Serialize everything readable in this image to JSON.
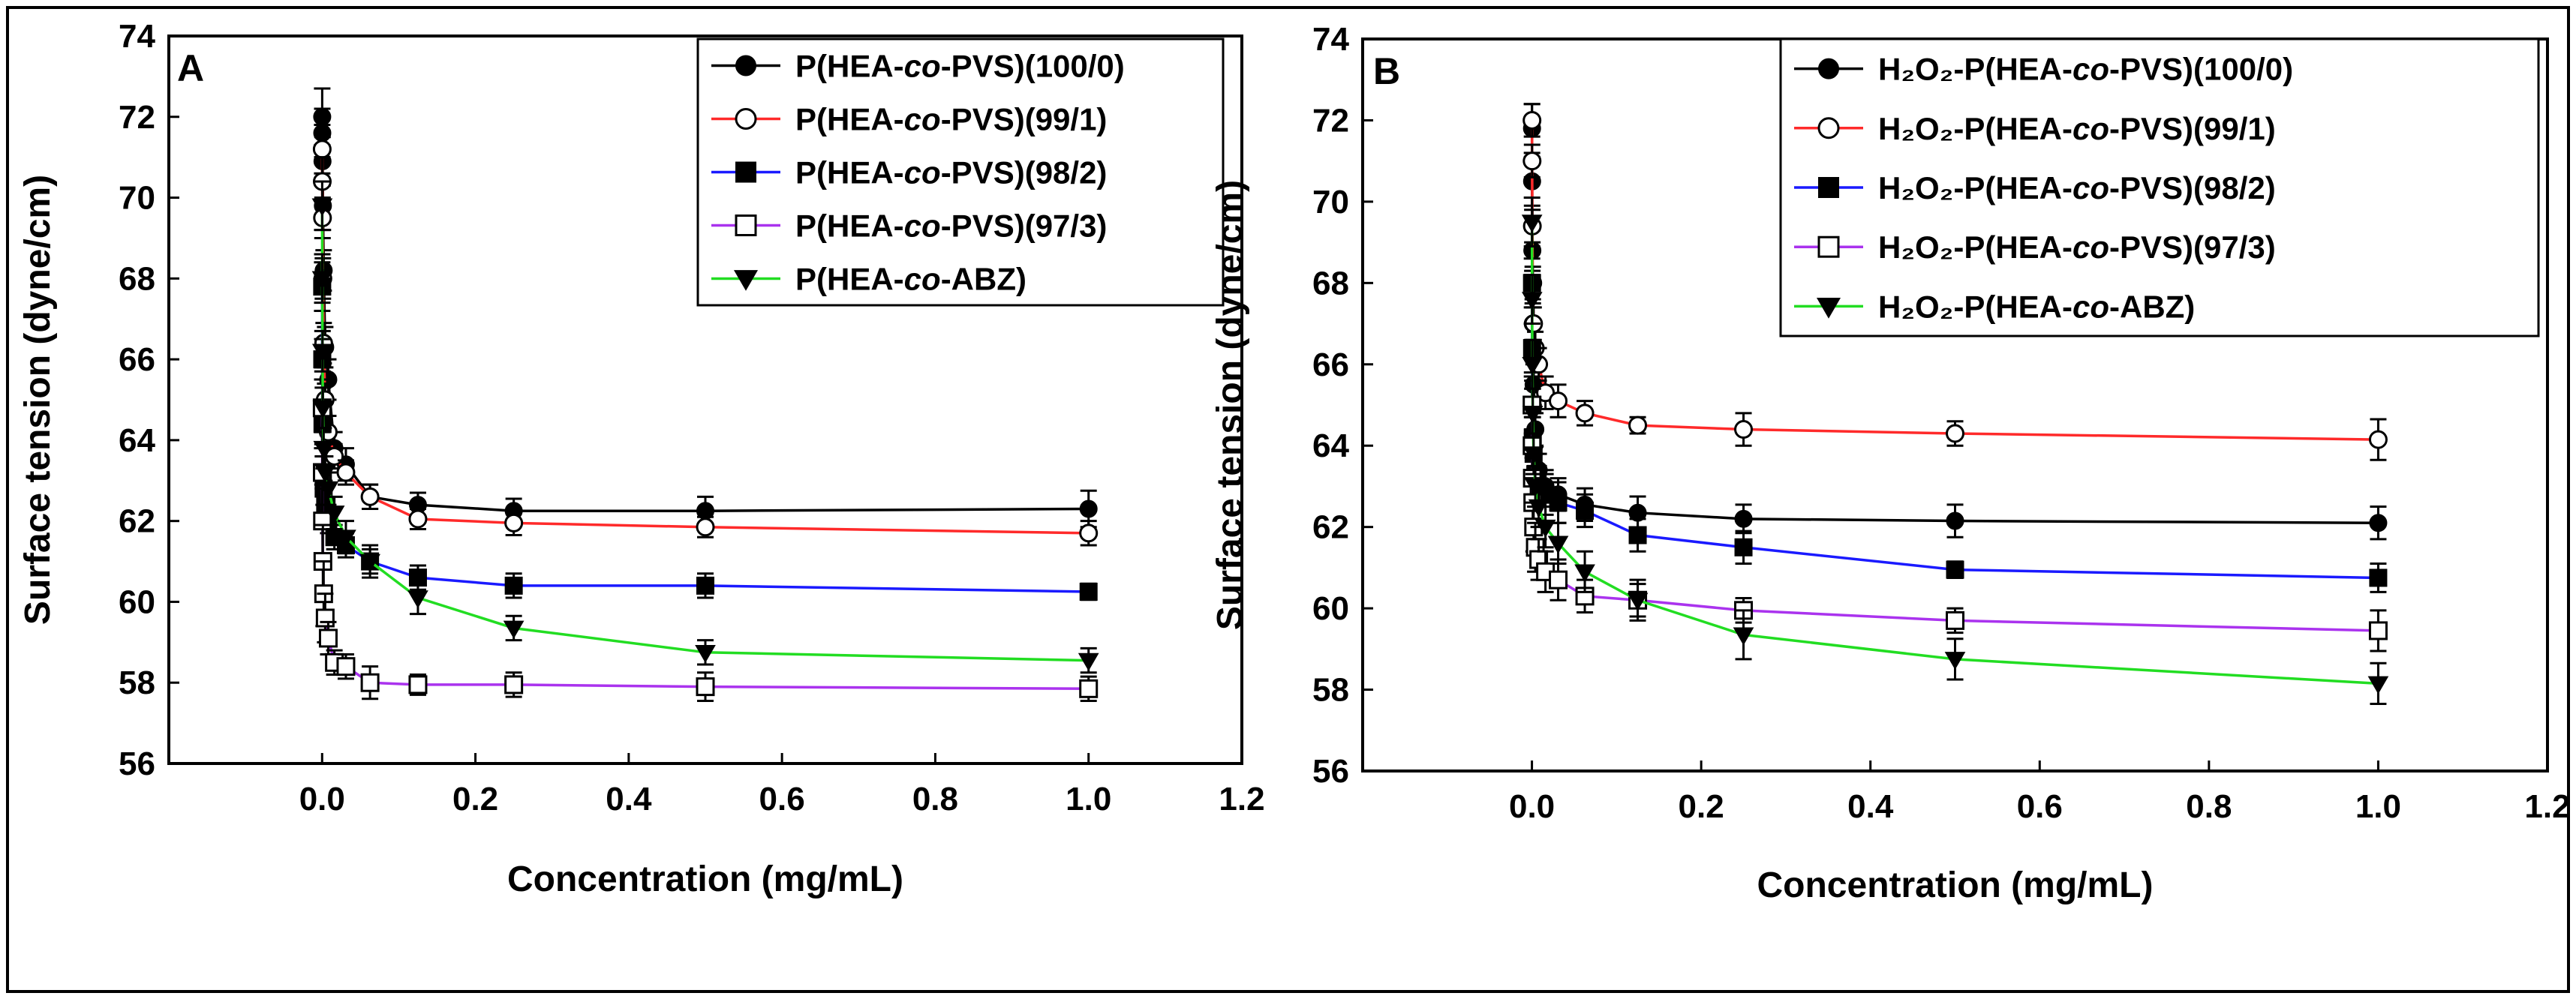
{
  "chart_data": [
    {
      "panel_label": "A",
      "type": "line",
      "xlabel": "Concentration (mg/mL)",
      "ylabel": "Surface tension (dyne/cm)",
      "xlim": [
        -0.2,
        1.2
      ],
      "ylim": [
        56,
        74
      ],
      "xticks": [
        0.0,
        0.2,
        0.4,
        0.6,
        0.8,
        1.0,
        1.2
      ],
      "xtick_labels": [
        "0.0",
        "0.2",
        "0.4",
        "0.6",
        "0.8",
        "1.0",
        "1.2"
      ],
      "yticks": [
        56,
        58,
        60,
        62,
        64,
        66,
        68,
        70,
        72,
        74
      ],
      "ytick_labels": [
        "56",
        "58",
        "60",
        "62",
        "64",
        "66",
        "68",
        "70",
        "72",
        "74"
      ],
      "legend_position": "top-right",
      "series": [
        {
          "legend_prefix": "",
          "legend_main": "P(HEA-",
          "legend_italic": "co",
          "legend_suffix": "-PVS)(100/0)",
          "color": "#000000",
          "marker": "filled-circle",
          "x": [
            0.0001,
            0.0002,
            0.0005,
            0.001,
            0.002,
            0.004,
            0.008,
            0.016,
            0.031,
            0.0625,
            0.125,
            0.25,
            0.5,
            1.0
          ],
          "y": [
            72.0,
            71.6,
            70.9,
            69.8,
            68.2,
            66.3,
            65.5,
            63.8,
            63.4,
            62.6,
            62.4,
            62.25,
            62.25,
            62.3
          ],
          "err": [
            0.7,
            0.6,
            0.6,
            0.6,
            0.5,
            0.5,
            0.5,
            0.4,
            0.4,
            0.3,
            0.3,
            0.3,
            0.35,
            0.45
          ]
        },
        {
          "legend_prefix": "",
          "legend_main": "P(HEA-",
          "legend_italic": "co",
          "legend_suffix": "-PVS)(99/1)",
          "color": "#ff2a2a",
          "marker": "open-circle",
          "x": [
            0.0001,
            0.0002,
            0.0005,
            0.001,
            0.002,
            0.004,
            0.008,
            0.016,
            0.031,
            0.0625,
            0.125,
            0.25,
            0.5,
            1.0
          ],
          "y": [
            71.2,
            70.4,
            69.5,
            68.0,
            66.4,
            65.0,
            64.2,
            63.6,
            63.2,
            62.6,
            62.05,
            61.95,
            61.85,
            61.7
          ],
          "err": [
            0.6,
            0.6,
            0.5,
            0.5,
            0.5,
            0.4,
            0.4,
            0.3,
            0.3,
            0.3,
            0.25,
            0.3,
            0.25,
            0.3
          ]
        },
        {
          "legend_prefix": "",
          "legend_main": "P(HEA-",
          "legend_italic": "co",
          "legend_suffix": "-PVS)(98/2)",
          "color": "#1a1aff",
          "marker": "filled-square",
          "x": [
            0.0001,
            0.0002,
            0.0005,
            0.001,
            0.002,
            0.004,
            0.008,
            0.016,
            0.031,
            0.0625,
            0.125,
            0.25,
            0.5,
            1.0
          ],
          "y": [
            67.8,
            66.0,
            64.4,
            63.2,
            62.8,
            62.4,
            62.0,
            61.6,
            61.4,
            61.0,
            60.6,
            60.4,
            60.4,
            60.25
          ],
          "err": [
            0.6,
            0.5,
            0.5,
            0.4,
            0.4,
            0.4,
            0.3,
            0.3,
            0.3,
            0.3,
            0.3,
            0.3,
            0.3,
            0.2
          ]
        },
        {
          "legend_prefix": "",
          "legend_main": "P(HEA-",
          "legend_italic": "co",
          "legend_suffix": "-PVS)(97/3)",
          "color": "#aa33ee",
          "marker": "open-square",
          "x": [
            0.0001,
            0.0002,
            0.0005,
            0.001,
            0.002,
            0.004,
            0.008,
            0.016,
            0.031,
            0.0625,
            0.125,
            0.25,
            0.5,
            1.0
          ],
          "y": [
            64.8,
            63.2,
            62.0,
            61.0,
            60.2,
            59.6,
            59.1,
            58.5,
            58.4,
            58.0,
            57.95,
            57.95,
            57.9,
            57.85
          ],
          "err": [
            1.0,
            1.0,
            0.9,
            0.9,
            0.8,
            0.6,
            0.4,
            0.3,
            0.3,
            0.4,
            0.25,
            0.3,
            0.35,
            0.3
          ]
        },
        {
          "legend_prefix": "",
          "legend_main": "P(HEA-",
          "legend_italic": "co",
          "legend_suffix": "-ABZ)",
          "color": "#22dd22",
          "marker": "filled-triangle-down",
          "x": [
            0.0001,
            0.0002,
            0.0005,
            0.001,
            0.002,
            0.004,
            0.008,
            0.016,
            0.031,
            0.0625,
            0.125,
            0.25,
            0.5,
            1.0
          ],
          "y": [
            69.8,
            68.0,
            66.2,
            64.8,
            63.8,
            63.2,
            62.8,
            62.2,
            61.6,
            61.0,
            60.1,
            59.35,
            58.75,
            58.55
          ],
          "err": [
            0.6,
            0.6,
            0.5,
            0.5,
            0.5,
            0.4,
            0.4,
            0.4,
            0.4,
            0.4,
            0.4,
            0.3,
            0.3,
            0.3
          ]
        }
      ]
    },
    {
      "panel_label": "B",
      "type": "line",
      "xlabel": "Concentration (mg/mL)",
      "ylabel": "Surface tension (dyne/cm)",
      "xlim": [
        -0.2,
        1.2
      ],
      "ylim": [
        56,
        74
      ],
      "xticks": [
        0.0,
        0.2,
        0.4,
        0.6,
        0.8,
        1.0,
        1.2
      ],
      "xtick_labels": [
        "0.0",
        "0.2",
        "0.4",
        "0.6",
        "0.8",
        "1.0",
        "1.2"
      ],
      "yticks": [
        56,
        58,
        60,
        62,
        64,
        66,
        68,
        70,
        72,
        74
      ],
      "ytick_labels": [
        "56",
        "58",
        "60",
        "62",
        "64",
        "66",
        "68",
        "70",
        "72",
        "74"
      ],
      "legend_position": "top-right",
      "series": [
        {
          "legend_prefix": "H₂O₂-",
          "legend_main": "P(HEA-",
          "legend_italic": "co",
          "legend_suffix": "-PVS)(100/0)",
          "color": "#000000",
          "marker": "filled-circle",
          "x": [
            0.0001,
            0.0002,
            0.0005,
            0.001,
            0.002,
            0.004,
            0.008,
            0.016,
            0.031,
            0.0625,
            0.125,
            0.25,
            0.5,
            1.0
          ],
          "y": [
            71.8,
            70.5,
            68.8,
            67.0,
            65.5,
            64.4,
            63.4,
            63.0,
            62.8,
            62.55,
            62.35,
            62.2,
            62.15,
            62.1
          ],
          "err": [
            0.6,
            0.6,
            0.5,
            0.5,
            0.5,
            0.4,
            0.4,
            0.4,
            0.4,
            0.4,
            0.4,
            0.35,
            0.4,
            0.4
          ]
        },
        {
          "legend_prefix": "H₂O₂-",
          "legend_main": "P(HEA-",
          "legend_italic": "co",
          "legend_suffix": "-PVS)(99/1)",
          "color": "#ff2a2a",
          "marker": "open-circle",
          "x": [
            0.0001,
            0.0002,
            0.0005,
            0.001,
            0.002,
            0.004,
            0.008,
            0.016,
            0.031,
            0.0625,
            0.125,
            0.25,
            0.5,
            1.0
          ],
          "y": [
            72.0,
            71.0,
            69.4,
            68.0,
            67.0,
            66.4,
            66.0,
            65.3,
            65.1,
            64.8,
            64.5,
            64.4,
            64.3,
            64.15
          ],
          "err": [
            0.4,
            0.4,
            0.4,
            0.4,
            0.4,
            0.4,
            0.4,
            0.4,
            0.4,
            0.3,
            0.2,
            0.4,
            0.3,
            0.5
          ]
        },
        {
          "legend_prefix": "H₂O₂-",
          "legend_main": "P(HEA-",
          "legend_italic": "co",
          "legend_suffix": "-PVS)(98/2)",
          "color": "#1a1aff",
          "marker": "filled-square",
          "x": [
            0.0001,
            0.0002,
            0.0005,
            0.001,
            0.002,
            0.004,
            0.008,
            0.016,
            0.031,
            0.0625,
            0.125,
            0.25,
            0.5,
            1.0
          ],
          "y": [
            68.0,
            66.4,
            65.0,
            64.2,
            63.8,
            63.3,
            63.0,
            62.8,
            62.6,
            62.4,
            61.8,
            61.5,
            60.95,
            60.75
          ],
          "err": [
            0.6,
            0.6,
            0.6,
            0.5,
            0.5,
            0.5,
            0.5,
            0.5,
            0.5,
            0.4,
            0.4,
            0.4,
            0.2,
            0.35
          ]
        },
        {
          "legend_prefix": "H₂O₂-",
          "legend_main": "P(HEA-",
          "legend_italic": "co",
          "legend_suffix": "-PVS)(97/3)",
          "color": "#aa33ee",
          "marker": "open-square",
          "x": [
            0.0001,
            0.0002,
            0.0005,
            0.001,
            0.002,
            0.004,
            0.008,
            0.016,
            0.031,
            0.0625,
            0.125,
            0.25,
            0.5,
            1.0
          ],
          "y": [
            65.0,
            64.0,
            63.2,
            62.6,
            62.0,
            61.5,
            61.2,
            60.9,
            60.7,
            60.3,
            60.2,
            59.95,
            59.7,
            59.45
          ],
          "err": [
            0.7,
            0.7,
            0.7,
            0.6,
            0.6,
            0.6,
            0.5,
            0.5,
            0.5,
            0.4,
            0.4,
            0.3,
            0.3,
            0.5
          ]
        },
        {
          "legend_prefix": "H₂O₂-",
          "legend_main": "P(HEA-",
          "legend_italic": "co",
          "legend_suffix": "-ABZ)",
          "color": "#22dd22",
          "marker": "filled-triangle-down",
          "x": [
            0.0001,
            0.0002,
            0.0005,
            0.001,
            0.002,
            0.004,
            0.008,
            0.016,
            0.031,
            0.0625,
            0.125,
            0.25,
            0.5,
            1.0
          ],
          "y": [
            69.5,
            67.6,
            66.0,
            64.8,
            63.8,
            63.0,
            62.5,
            62.0,
            61.6,
            60.9,
            60.2,
            59.35,
            58.75,
            58.15
          ],
          "err": [
            0.6,
            0.6,
            0.6,
            0.6,
            0.5,
            0.5,
            0.5,
            0.5,
            0.5,
            0.5,
            0.5,
            0.6,
            0.5,
            0.5
          ]
        }
      ]
    }
  ]
}
